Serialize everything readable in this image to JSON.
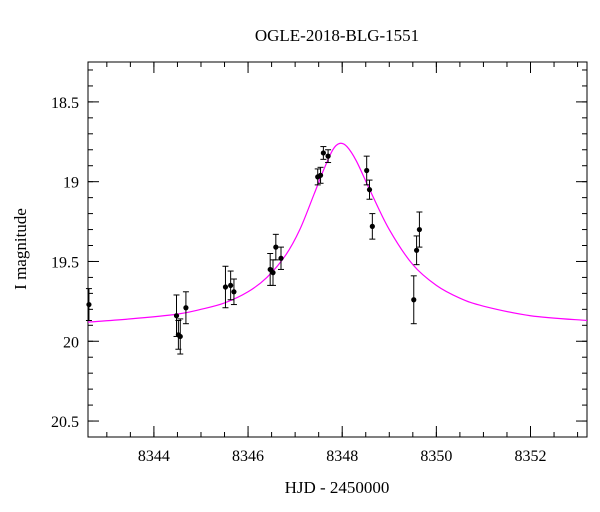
{
  "chart_data": {
    "type": "scatter",
    "title": "OGLE-2018-BLG-1551",
    "xlabel": "HJD - 2450000",
    "ylabel": "I magnitude",
    "xlim": [
      8342.6,
      8353.2
    ],
    "ylim": [
      20.6,
      18.25
    ],
    "y_inverted": true,
    "grid": false,
    "x_ticks": [
      8344,
      8346,
      8348,
      8350,
      8352
    ],
    "x_tick_labels": [
      "8344",
      "8346",
      "8348",
      "8350",
      "8352"
    ],
    "y_ticks": [
      18.5,
      19,
      19.5,
      20,
      20.5
    ],
    "y_tick_labels": [
      "18.5",
      "19",
      "19.5",
      "20",
      "20.5"
    ],
    "x_minor_step": 0.5,
    "y_minor_step": 0.1,
    "colors": {
      "data": "#000000",
      "model": "#ff00ff",
      "axes": "#000000"
    },
    "series": [
      {
        "type": "scatter_errorbar",
        "points": [
          {
            "x": 8342.62,
            "y": 19.77,
            "err": 0.1
          },
          {
            "x": 8344.48,
            "y": 19.84,
            "err": 0.13
          },
          {
            "x": 8344.52,
            "y": 19.96,
            "err": 0.09
          },
          {
            "x": 8344.56,
            "y": 19.97,
            "err": 0.11
          },
          {
            "x": 8344.68,
            "y": 19.79,
            "err": 0.1
          },
          {
            "x": 8345.52,
            "y": 19.66,
            "err": 0.13
          },
          {
            "x": 8345.63,
            "y": 19.65,
            "err": 0.09
          },
          {
            "x": 8345.7,
            "y": 19.69,
            "err": 0.08
          },
          {
            "x": 8346.47,
            "y": 19.55,
            "err": 0.1
          },
          {
            "x": 8346.53,
            "y": 19.57,
            "err": 0.08
          },
          {
            "x": 8346.59,
            "y": 19.41,
            "err": 0.08
          },
          {
            "x": 8346.7,
            "y": 19.48,
            "err": 0.07
          },
          {
            "x": 8347.48,
            "y": 18.97,
            "err": 0.05
          },
          {
            "x": 8347.54,
            "y": 18.96,
            "err": 0.05
          },
          {
            "x": 8347.6,
            "y": 18.82,
            "err": 0.04
          },
          {
            "x": 8347.7,
            "y": 18.84,
            "err": 0.04
          },
          {
            "x": 8348.52,
            "y": 18.93,
            "err": 0.09
          },
          {
            "x": 8348.58,
            "y": 19.05,
            "err": 0.06
          },
          {
            "x": 8348.64,
            "y": 19.28,
            "err": 0.08
          },
          {
            "x": 8349.52,
            "y": 19.74,
            "err": 0.15
          },
          {
            "x": 8349.58,
            "y": 19.43,
            "err": 0.09
          },
          {
            "x": 8349.64,
            "y": 19.3,
            "err": 0.11
          }
        ]
      },
      {
        "type": "line",
        "points": [
          {
            "x": 8342.6,
            "y": 19.88
          },
          {
            "x": 8343.5,
            "y": 19.86
          },
          {
            "x": 8344.5,
            "y": 19.83
          },
          {
            "x": 8345.0,
            "y": 19.8
          },
          {
            "x": 8345.5,
            "y": 19.76
          },
          {
            "x": 8346.0,
            "y": 19.69
          },
          {
            "x": 8346.4,
            "y": 19.6
          },
          {
            "x": 8346.8,
            "y": 19.46
          },
          {
            "x": 8347.1,
            "y": 19.3
          },
          {
            "x": 8347.4,
            "y": 19.08
          },
          {
            "x": 8347.6,
            "y": 18.93
          },
          {
            "x": 8347.8,
            "y": 18.8
          },
          {
            "x": 8347.95,
            "y": 18.76
          },
          {
            "x": 8348.1,
            "y": 18.78
          },
          {
            "x": 8348.3,
            "y": 18.87
          },
          {
            "x": 8348.6,
            "y": 19.06
          },
          {
            "x": 8349.0,
            "y": 19.3
          },
          {
            "x": 8349.5,
            "y": 19.52
          },
          {
            "x": 8350.0,
            "y": 19.65
          },
          {
            "x": 8350.5,
            "y": 19.73
          },
          {
            "x": 8351.0,
            "y": 19.78
          },
          {
            "x": 8352.0,
            "y": 19.84
          },
          {
            "x": 8353.2,
            "y": 19.87
          }
        ]
      }
    ]
  }
}
